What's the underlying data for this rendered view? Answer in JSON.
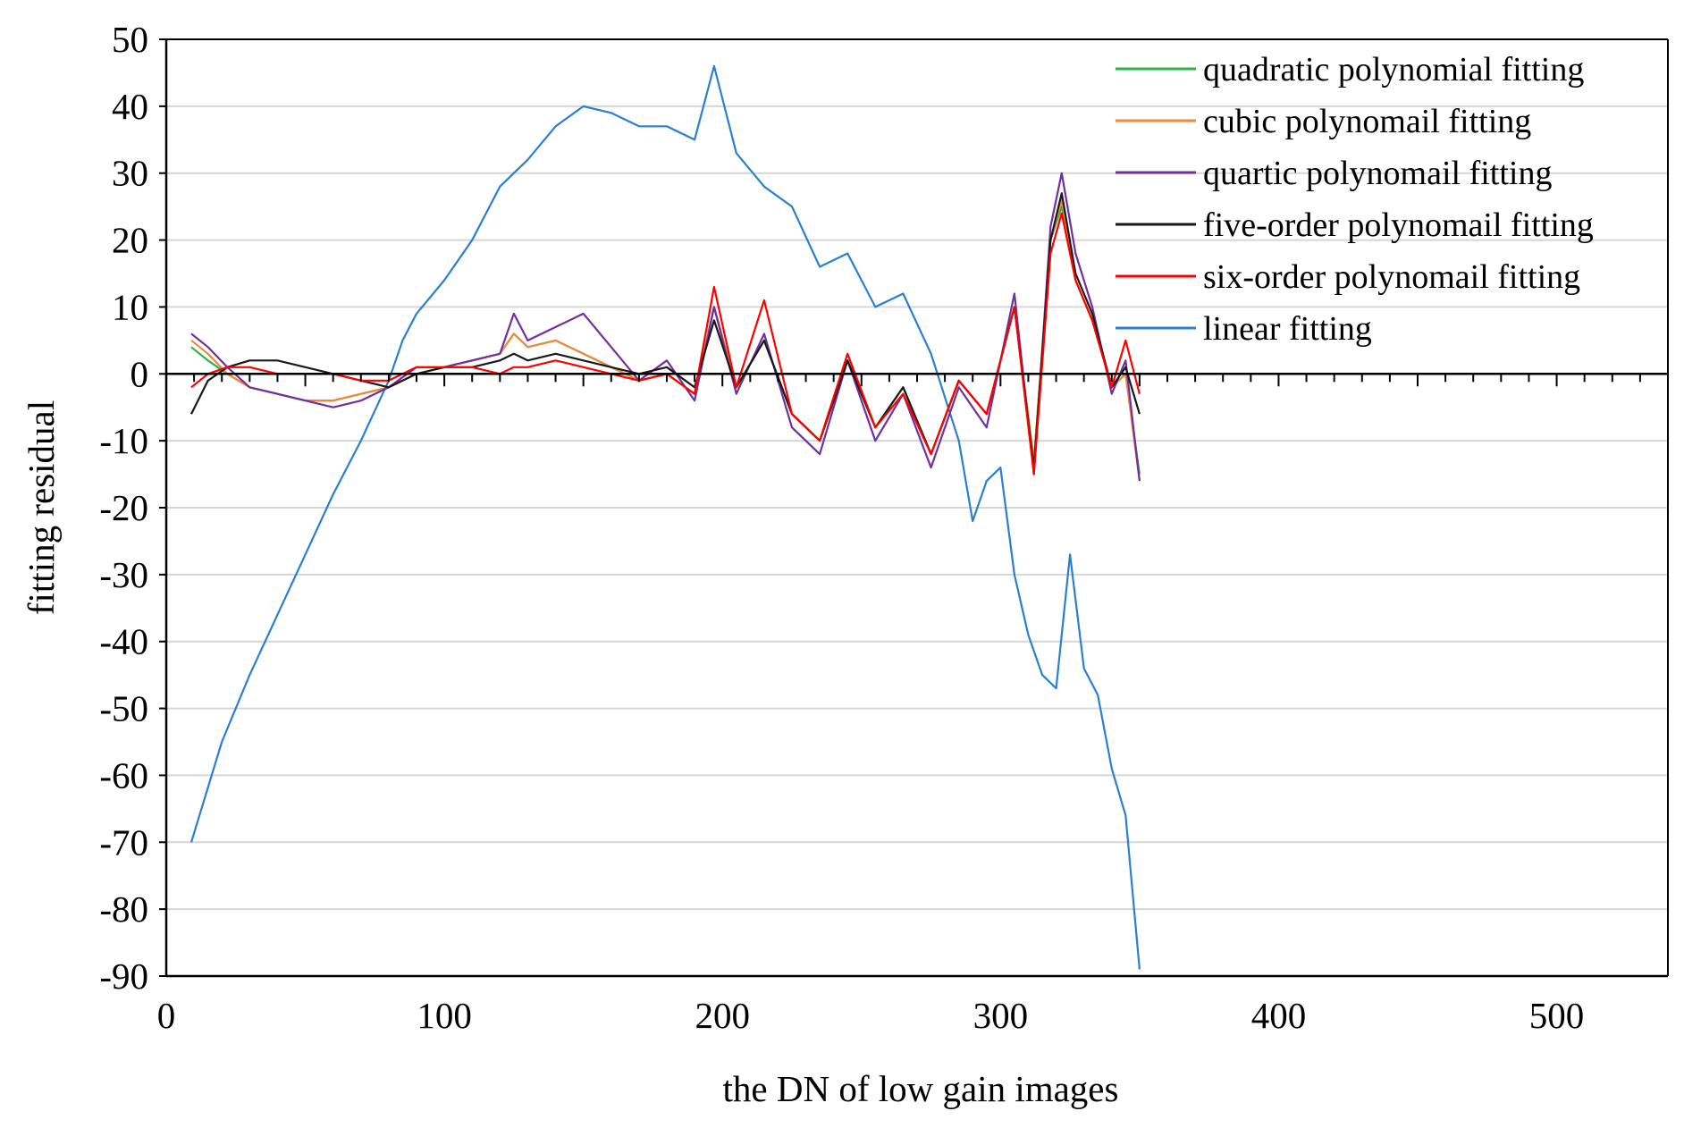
{
  "chart_data": {
    "type": "line",
    "title": "",
    "xlabel": "the DN of low gain images",
    "ylabel": "fitting residual",
    "xlim": [
      0,
      540
    ],
    "ylim": [
      -90,
      50
    ],
    "xticks": [
      "0",
      "100",
      "200",
      "300",
      "400",
      "500"
    ],
    "yticks": [
      "50",
      "40",
      "30",
      "20",
      "10",
      "0",
      "-10",
      "-20",
      "-30",
      "-40",
      "-50",
      "-60",
      "-70",
      "-80",
      "-90"
    ],
    "grid": true,
    "legend_position": "top-right",
    "series": [
      {
        "name": "quadratic polynomial fitting",
        "color": "#2db34a",
        "x": [
          9,
          15,
          22,
          30,
          40,
          50,
          60,
          70,
          80,
          90,
          100,
          110,
          120,
          125,
          130,
          140,
          150,
          160,
          170,
          180,
          190,
          197,
          205,
          215,
          225,
          235,
          245,
          255,
          265,
          275,
          285,
          295,
          305,
          312,
          318,
          322,
          327,
          333,
          340,
          345,
          350
        ],
        "y": [
          4,
          2,
          0,
          -2,
          -3,
          -4,
          -4,
          -3,
          -2,
          0,
          1,
          2,
          3,
          6,
          4,
          5,
          3,
          1,
          -1,
          0,
          -3,
          10,
          -2,
          5,
          -6,
          -10,
          2,
          -8,
          -2,
          -12,
          -1,
          -6,
          10,
          -13,
          20,
          25,
          14,
          8,
          -2,
          0,
          -15
        ]
      },
      {
        "name": "cubic polynomail fitting",
        "color": "#f08a3a",
        "x": [
          9,
          15,
          22,
          30,
          40,
          50,
          60,
          70,
          80,
          90,
          100,
          110,
          120,
          125,
          130,
          140,
          150,
          160,
          170,
          180,
          190,
          197,
          205,
          215,
          225,
          235,
          245,
          255,
          265,
          275,
          285,
          295,
          305,
          312,
          318,
          322,
          327,
          333,
          340,
          345,
          350
        ],
        "y": [
          5,
          3,
          0,
          -2,
          -3,
          -4,
          -4,
          -3,
          -2,
          0,
          1,
          2,
          3,
          6,
          4,
          5,
          3,
          1,
          -1,
          0,
          -3,
          10,
          -2,
          5,
          -6,
          -10,
          2,
          -8,
          -2,
          -12,
          -1,
          -6,
          10,
          -13,
          20,
          26,
          14,
          8,
          -2,
          0,
          -16
        ]
      },
      {
        "name": "quartic polynomail fitting",
        "color": "#7030a0",
        "x": [
          9,
          15,
          22,
          30,
          40,
          50,
          60,
          70,
          80,
          90,
          100,
          110,
          120,
          125,
          130,
          140,
          150,
          160,
          170,
          180,
          190,
          197,
          205,
          215,
          225,
          235,
          245,
          255,
          265,
          275,
          285,
          295,
          305,
          312,
          318,
          322,
          327,
          333,
          340,
          345,
          350
        ],
        "y": [
          6,
          4,
          1,
          -2,
          -3,
          -4,
          -5,
          -4,
          -2,
          1,
          1,
          2,
          3,
          9,
          5,
          7,
          9,
          4,
          -1,
          2,
          -4,
          10,
          -3,
          6,
          -8,
          -12,
          2,
          -10,
          -3,
          -14,
          -2,
          -8,
          12,
          -15,
          22,
          30,
          18,
          10,
          -3,
          2,
          -16
        ]
      },
      {
        "name": "five-order polynomail fitting",
        "color": "#1a1a1a",
        "x": [
          9,
          15,
          22,
          30,
          40,
          50,
          60,
          70,
          80,
          90,
          100,
          110,
          120,
          125,
          130,
          140,
          150,
          160,
          170,
          180,
          190,
          197,
          205,
          215,
          225,
          235,
          245,
          255,
          265,
          275,
          285,
          295,
          305,
          312,
          318,
          322,
          327,
          333,
          340,
          345,
          350
        ],
        "y": [
          -6,
          -1,
          1,
          2,
          2,
          1,
          0,
          -1,
          -2,
          0,
          1,
          1,
          2,
          3,
          2,
          3,
          2,
          1,
          0,
          1,
          -2,
          8,
          -2,
          5,
          -6,
          -10,
          2,
          -8,
          -2,
          -12,
          -1,
          -6,
          10,
          -14,
          20,
          27,
          15,
          9,
          -2,
          1,
          -6
        ]
      },
      {
        "name": "six-order polynomail fitting",
        "color": "#ff0000",
        "x": [
          9,
          15,
          22,
          30,
          40,
          50,
          60,
          70,
          80,
          90,
          100,
          110,
          120,
          125,
          130,
          140,
          150,
          160,
          170,
          180,
          190,
          197,
          205,
          215,
          225,
          235,
          245,
          255,
          265,
          275,
          285,
          295,
          305,
          312,
          318,
          322,
          327,
          333,
          340,
          345,
          350
        ],
        "y": [
          -2,
          0,
          1,
          1,
          0,
          0,
          0,
          -1,
          -1,
          1,
          1,
          1,
          0,
          1,
          1,
          2,
          1,
          0,
          -1,
          0,
          -3,
          13,
          -2,
          11,
          -6,
          -10,
          3,
          -8,
          -3,
          -12,
          -1,
          -6,
          10,
          -15,
          18,
          24,
          14,
          8,
          -2,
          5,
          -3
        ]
      },
      {
        "name": "linear fitting",
        "color": "#2b7fd0",
        "x": [
          9,
          20,
          30,
          40,
          50,
          60,
          70,
          80,
          85,
          90,
          100,
          110,
          120,
          130,
          140,
          150,
          160,
          170,
          180,
          190,
          197,
          205,
          215,
          225,
          235,
          245,
          255,
          265,
          275,
          285,
          290,
          295,
          300,
          305,
          310,
          315,
          320,
          325,
          330,
          335,
          340,
          345,
          350
        ],
        "y": [
          -70,
          -55,
          -45,
          -36,
          -27,
          -18,
          -10,
          -1,
          5,
          9,
          14,
          20,
          28,
          32,
          37,
          40,
          39,
          37,
          37,
          35,
          46,
          33,
          28,
          25,
          16,
          18,
          10,
          12,
          3,
          -10,
          -22,
          -16,
          -14,
          -30,
          -39,
          -45,
          -47,
          -27,
          -44,
          -48,
          -59,
          -66,
          -89
        ]
      }
    ]
  }
}
